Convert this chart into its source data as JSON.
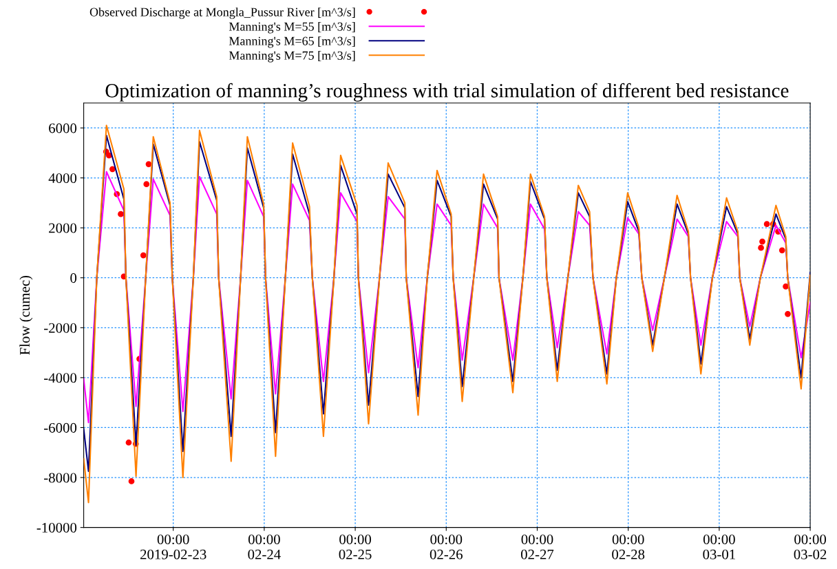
{
  "chart_data": {
    "type": "line",
    "title": "Optimization of manning’s roughness with trial simulation of different bed resistance",
    "ylabel": "Flow (cumec)",
    "ylim": [
      -10000,
      7000
    ],
    "yticks": [
      -10000,
      -8000,
      -6000,
      -4000,
      -2000,
      0,
      2000,
      4000,
      6000
    ],
    "xlim": [
      "2019-02-22T00:23",
      "2019-03-02T00:00"
    ],
    "xticks": [
      {
        "value": "2019-02-23",
        "label": "00:00\n2019-02-23"
      },
      {
        "value": "2019-02-24",
        "label": "00:00\n02-24"
      },
      {
        "value": "2019-02-25",
        "label": "00:00\n02-25"
      },
      {
        "value": "2019-02-26",
        "label": "00:00\n02-26"
      },
      {
        "value": "2019-02-27",
        "label": "00:00\n02-27"
      },
      {
        "value": "2019-02-28",
        "label": "00:00\n02-28"
      },
      {
        "value": "2019-03-01",
        "label": "00:00\n03-01"
      },
      {
        "value": "2019-03-02",
        "label": "00:00\n03-02"
      }
    ],
    "x": [
      "2019-02-22T00:23",
      "2019-02-22T01:39",
      "2019-02-22T03:50",
      "2019-02-22T06:23",
      "2019-02-22T10:59",
      "2019-02-22T11:31",
      "2019-02-22T14:11",
      "2019-02-22T16:44",
      "2019-02-22T18:44",
      "2019-02-22T23:09",
      "2019-02-22T23:45",
      "2019-02-23T02:33",
      "2019-02-23T05:18",
      "2019-02-23T06:56",
      "2019-02-23T11:28",
      "2019-02-23T11:59",
      "2019-02-23T15:16",
      "2019-02-23T17:46",
      "2019-02-23T19:33",
      "2019-02-23T23:51",
      "2019-02-24T00:21",
      "2019-02-24T02:59",
      "2019-02-24T05:34",
      "2019-02-24T07:29",
      "2019-02-24T11:56",
      "2019-02-24T12:41",
      "2019-02-24T15:37",
      "2019-02-24T18:23",
      "2019-02-24T20:09",
      "2019-02-25T00:28",
      "2019-02-25T00:50",
      "2019-02-25T03:31",
      "2019-02-25T06:24",
      "2019-02-25T08:41",
      "2019-02-25T13:05",
      "2019-02-25T13:27",
      "2019-02-25T16:35",
      "2019-02-25T19:00",
      "2019-02-25T21:35",
      "2019-02-26T01:18",
      "2019-02-26T01:50",
      "2019-02-26T04:13",
      "2019-02-26T07:15",
      "2019-02-26T09:50",
      "2019-02-26T13:33",
      "2019-02-26T13:55",
      "2019-02-26T17:34",
      "2019-02-26T20:13",
      "2019-02-26T22:13",
      "2019-02-27T01:56",
      "2019-02-27T02:32",
      "2019-02-27T05:17",
      "2019-02-27T08:05",
      "2019-02-27T10:50",
      "2019-02-27T13:49",
      "2019-02-27T14:42",
      "2019-02-27T18:22",
      "2019-02-27T20:52",
      "2019-02-27T23:51",
      "2019-02-28T02:49",
      "2019-02-28T03:35",
      "2019-02-28T06:27",
      "2019-02-28T09:32",
      "2019-02-28T12:53",
      "2019-02-28T15:52",
      "2019-02-28T16:26",
      "2019-02-28T19:10",
      "2019-02-28T22:12",
      "2019-03-01T01:56",
      "2019-03-01T04:55",
      "2019-03-01T05:25",
      "2019-03-01T08:04",
      "2019-03-01T10:51",
      "2019-03-01T14:58",
      "2019-03-01T17:33",
      "2019-03-01T18:04",
      "2019-03-01T21:36",
      "2019-03-02T00:00"
    ],
    "grid": true,
    "legend": "top",
    "series": [
      {
        "name": "Observed Discharge at Mongla_Pussur River [m^3/s]",
        "type": "scatter",
        "marker": "circle",
        "color": "#ff0000",
        "x": [
          "2019-02-22T06:19",
          "2019-02-22T07:04",
          "2019-02-22T07:58",
          "2019-02-22T09:08",
          "2019-02-22T10:10",
          "2019-02-22T10:59",
          "2019-02-22T12:15",
          "2019-02-22T12:59",
          "2019-02-22T14:07",
          "2019-02-22T15:05",
          "2019-02-22T16:07",
          "2019-02-22T16:56",
          "2019-02-22T17:31",
          "2019-03-01T11:01",
          "2019-03-01T11:22",
          "2019-03-01T12:34",
          "2019-03-01T14:13",
          "2019-03-01T15:33",
          "2019-03-01T16:35",
          "2019-03-01T17:33",
          "2019-03-01T18:05"
        ],
        "values": [
          5050,
          4900,
          4350,
          3350,
          2550,
          50,
          -6600,
          -8150,
          -6650,
          -3250,
          900,
          3750,
          4550,
          1200,
          1450,
          2150,
          2150,
          1850,
          1100,
          -350,
          -1450
        ]
      },
      {
        "name": "Manning's M=55 [m^3/s]",
        "color": "#ff00ff",
        "values": [
          -4050,
          -5800,
          0,
          4250,
          2700,
          0,
          -5150,
          0,
          3950,
          2500,
          0,
          -5350,
          0,
          4050,
          2550,
          0,
          -4850,
          0,
          3900,
          2450,
          0,
          -4650,
          0,
          3750,
          2300,
          0,
          -4150,
          0,
          3400,
          2250,
          0,
          -3800,
          0,
          3250,
          2350,
          0,
          -3600,
          0,
          2950,
          2100,
          0,
          -3300,
          0,
          2950,
          2000,
          0,
          -3300,
          0,
          2950,
          1950,
          0,
          -2800,
          0,
          2650,
          2100,
          0,
          -3050,
          0,
          2400,
          1750,
          0,
          -2100,
          0,
          2350,
          1650,
          0,
          -2700,
          0,
          2250,
          1650,
          0,
          -1950,
          0,
          2100,
          1400,
          0,
          -3200,
          -1000
        ]
      },
      {
        "name": "Manning's M=65 [m^3/s]",
        "color": "#000080",
        "values": [
          -6050,
          -7750,
          0,
          5700,
          3150,
          0,
          -6700,
          0,
          5350,
          2900,
          0,
          -6950,
          0,
          5450,
          3100,
          0,
          -6350,
          0,
          5200,
          2800,
          0,
          -6200,
          0,
          4950,
          2550,
          0,
          -5450,
          0,
          4500,
          2550,
          0,
          -5100,
          0,
          4150,
          2800,
          0,
          -4750,
          0,
          3900,
          2450,
          0,
          -4350,
          0,
          3750,
          2350,
          0,
          -4150,
          0,
          3850,
          2350,
          0,
          -3700,
          0,
          3400,
          2450,
          0,
          -3850,
          0,
          3050,
          1850,
          0,
          -2700,
          0,
          2950,
          1750,
          0,
          -3450,
          0,
          2850,
          1750,
          0,
          -2450,
          0,
          2550,
          1550,
          0,
          -4000,
          200
        ]
      },
      {
        "name": "Manning's M=75 [m^3/s]",
        "color": "#ff8000",
        "values": [
          -7250,
          -9000,
          0,
          6100,
          3550,
          0,
          -7950,
          0,
          5650,
          3000,
          0,
          -8000,
          0,
          5900,
          3250,
          0,
          -7350,
          0,
          5650,
          2950,
          0,
          -7150,
          0,
          5400,
          2850,
          0,
          -6350,
          0,
          4900,
          2900,
          0,
          -5850,
          0,
          4600,
          3000,
          0,
          -5500,
          0,
          4300,
          2550,
          0,
          -4950,
          0,
          4150,
          2450,
          0,
          -4600,
          0,
          4150,
          2450,
          0,
          -4150,
          0,
          3700,
          2650,
          0,
          -4250,
          0,
          3400,
          2000,
          0,
          -2950,
          0,
          3300,
          1850,
          0,
          -3850,
          0,
          3200,
          1850,
          0,
          -2700,
          0,
          2900,
          1650,
          0,
          -4450,
          100
        ]
      }
    ]
  }
}
